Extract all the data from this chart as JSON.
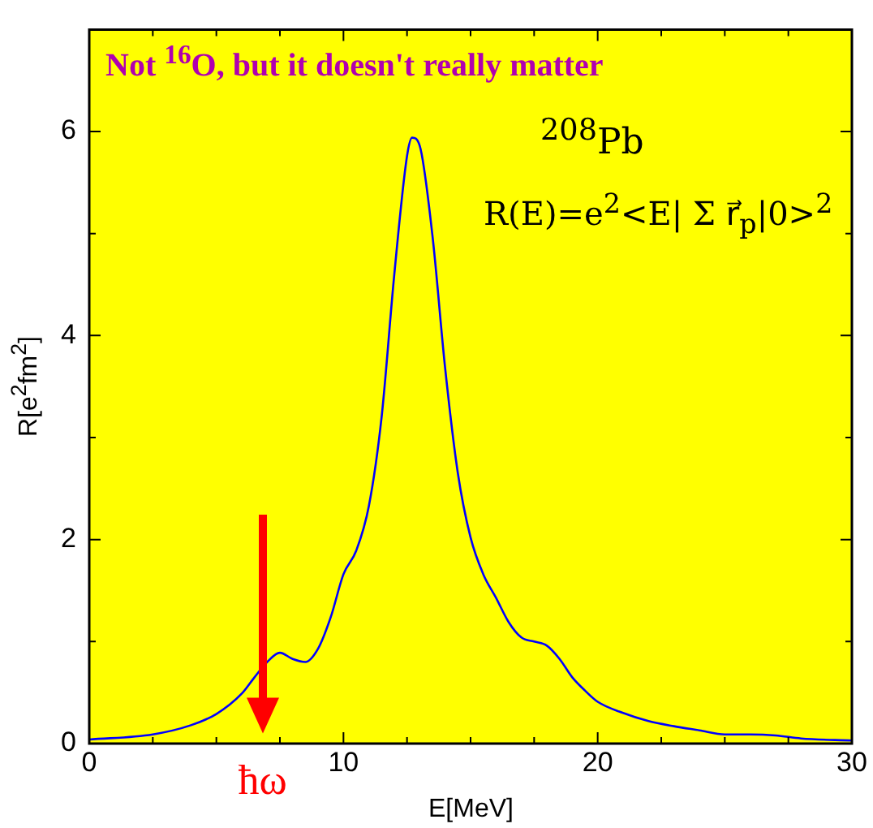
{
  "chart_data": {
    "type": "line",
    "title": "Not $^{16}$O, but it doesn't really matter",
    "xlabel": "E[MeV]",
    "ylabel": "R[e$^{2}$fm$^{2}$]",
    "annotations": [
      "$^{208}$Pb",
      "R(E)=e$^{2}$<E|  Σ r⃗$_{p}$|0>$^{2}$",
      "ħω"
    ],
    "x": [
      0,
      2.5,
      4,
      5,
      6,
      6.5,
      7,
      7.5,
      8,
      8.5,
      9,
      9.5,
      10,
      10.5,
      11,
      11.5,
      12,
      12.5,
      12.7,
      13,
      13.5,
      14,
      14.5,
      15,
      15.5,
      16,
      16.5,
      17,
      17.5,
      18,
      18.5,
      19,
      19.5,
      20,
      21,
      22,
      23,
      24,
      25,
      26,
      27,
      28,
      30
    ],
    "series": [
      {
        "color": "#0000ff",
        "values": [
          0.04,
          0.09,
          0.18,
          0.29,
          0.49,
          0.65,
          0.8,
          0.89,
          0.83,
          0.8,
          0.93,
          1.24,
          1.66,
          1.89,
          2.33,
          3.2,
          4.6,
          5.76,
          5.94,
          5.86,
          4.98,
          3.68,
          2.65,
          2.02,
          1.66,
          1.43,
          1.19,
          1.04,
          1.0,
          0.96,
          0.83,
          0.65,
          0.52,
          0.41,
          0.3,
          0.22,
          0.17,
          0.13,
          0.09,
          0.09,
          0.08,
          0.05,
          0.03
        ]
      }
    ],
    "xlim": [
      0,
      30
    ],
    "xticks": [
      0,
      {
        "value": 2.5,
        "label": null
      },
      {
        "value": 5,
        "label": null
      },
      {
        "value": 7.5,
        "label": null
      },
      10,
      {
        "value": 12.5,
        "label": null
      },
      {
        "value": 15,
        "label": null
      },
      {
        "value": 17.5,
        "label": null
      },
      20,
      {
        "value": 22.5,
        "label": null
      },
      {
        "value": 25,
        "label": null
      },
      {
        "value": 27.5,
        "label": null
      },
      30
    ],
    "ylim": [
      0,
      7
    ],
    "yticks": [
      0,
      {
        "value": 1,
        "label": null
      },
      2,
      {
        "value": 3,
        "label": null
      },
      4,
      {
        "value": 5,
        "label": null
      },
      6
    ],
    "legend": false,
    "marker": "none",
    "line_style": "solid"
  }
}
